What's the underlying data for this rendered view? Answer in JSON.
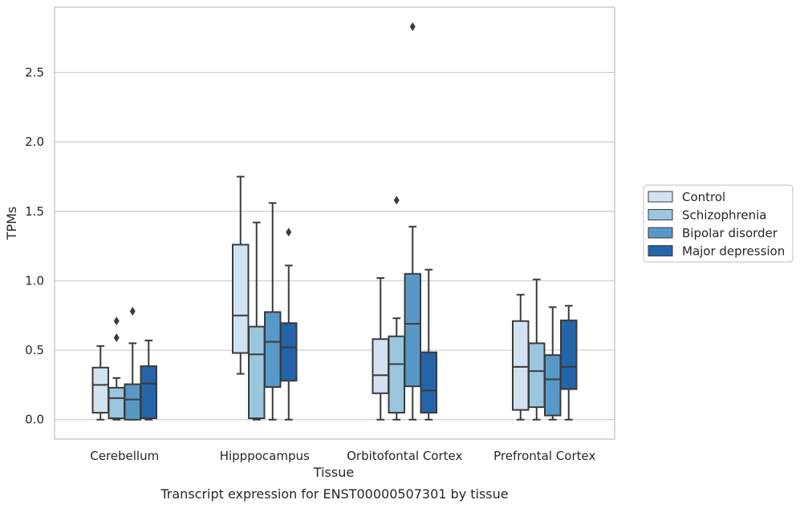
{
  "caption": "Transcript expression for ENST00000507301 by tissue",
  "chart_data": {
    "type": "box",
    "xlabel": "Tissue",
    "ylabel": "TPMs",
    "ylim": [
      -0.14,
      2.97
    ],
    "yticks": [
      0.0,
      0.5,
      1.0,
      1.5,
      2.0,
      2.5
    ],
    "ytick_labels": [
      "0.0",
      "0.5",
      "1.0",
      "1.5",
      "2.0",
      "2.5"
    ],
    "categories": [
      "Cerebellum",
      "Hipppocampus",
      "Orbitofontal Cortex",
      "Prefrontal Cortex"
    ],
    "grid": "horizontal",
    "legend_position": "right",
    "series": [
      {
        "name": "Control",
        "color": "#d2e2f1",
        "boxes": [
          {
            "whislo": 0.0,
            "q1": 0.05,
            "med": 0.25,
            "q3": 0.375,
            "whishi": 0.53,
            "fliers": []
          },
          {
            "whislo": 0.33,
            "q1": 0.48,
            "med": 0.75,
            "q3": 1.26,
            "whishi": 1.75,
            "fliers": []
          },
          {
            "whislo": 0.0,
            "q1": 0.19,
            "med": 0.32,
            "q3": 0.58,
            "whishi": 1.02,
            "fliers": []
          },
          {
            "whislo": 0.0,
            "q1": 0.07,
            "med": 0.38,
            "q3": 0.71,
            "whishi": 0.9,
            "fliers": []
          }
        ]
      },
      {
        "name": "Schizophrenia",
        "color": "#9ac6de",
        "boxes": [
          {
            "whislo": 0.0,
            "q1": 0.01,
            "med": 0.155,
            "q3": 0.23,
            "whishi": 0.3,
            "fliers": [
              0.59,
              0.71
            ]
          },
          {
            "whislo": 0.0,
            "q1": 0.01,
            "med": 0.47,
            "q3": 0.67,
            "whishi": 1.42,
            "fliers": []
          },
          {
            "whislo": 0.0,
            "q1": 0.05,
            "med": 0.4,
            "q3": 0.6,
            "whishi": 0.73,
            "fliers": [
              1.58
            ]
          },
          {
            "whislo": 0.0,
            "q1": 0.09,
            "med": 0.35,
            "q3": 0.55,
            "whishi": 1.01,
            "fliers": []
          }
        ]
      },
      {
        "name": "Bipolar disorder",
        "color": "#5898c7",
        "boxes": [
          {
            "whislo": 0.0,
            "q1": 0.0,
            "med": 0.145,
            "q3": 0.255,
            "whishi": 0.55,
            "fliers": [
              0.78
            ]
          },
          {
            "whislo": 0.0,
            "q1": 0.235,
            "med": 0.56,
            "q3": 0.775,
            "whishi": 1.56,
            "fliers": []
          },
          {
            "whislo": 0.0,
            "q1": 0.24,
            "med": 0.69,
            "q3": 1.05,
            "whishi": 1.39,
            "fliers": [
              2.83
            ]
          },
          {
            "whislo": 0.0,
            "q1": 0.03,
            "med": 0.29,
            "q3": 0.465,
            "whishi": 0.81,
            "fliers": []
          }
        ]
      },
      {
        "name": "Major depression",
        "color": "#2464a8",
        "boxes": [
          {
            "whislo": 0.0,
            "q1": 0.01,
            "med": 0.26,
            "q3": 0.385,
            "whishi": 0.57,
            "fliers": []
          },
          {
            "whislo": 0.0,
            "q1": 0.28,
            "med": 0.52,
            "q3": 0.695,
            "whishi": 1.11,
            "fliers": [
              1.35
            ]
          },
          {
            "whislo": 0.0,
            "q1": 0.05,
            "med": 0.21,
            "q3": 0.485,
            "whishi": 1.08,
            "fliers": []
          },
          {
            "whislo": 0.0,
            "q1": 0.22,
            "med": 0.38,
            "q3": 0.715,
            "whishi": 0.82,
            "fliers": []
          }
        ]
      }
    ]
  }
}
